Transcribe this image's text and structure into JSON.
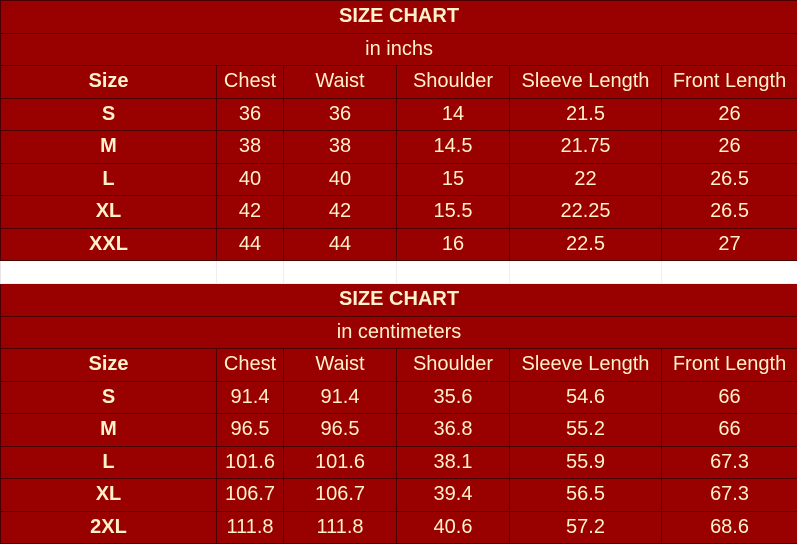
{
  "tables": [
    {
      "title": "SIZE CHART",
      "subtitle": "in inchs",
      "headers": [
        "Size",
        "Chest",
        "Waist",
        "Shoulder",
        "Sleeve Length",
        "Front Length"
      ],
      "rows": [
        [
          "S",
          "36",
          "36",
          "14",
          "21.5",
          "26"
        ],
        [
          "M",
          "38",
          "38",
          "14.5",
          "21.75",
          "26"
        ],
        [
          "L",
          "40",
          "40",
          "15",
          "22",
          "26.5"
        ],
        [
          "XL",
          "42",
          "42",
          "15.5",
          "22.25",
          "26.5"
        ],
        [
          "XXL",
          "44",
          "44",
          "16",
          "22.5",
          "27"
        ]
      ]
    },
    {
      "title": "SIZE CHART",
      "subtitle": "in centimeters",
      "headers": [
        "Size",
        "Chest",
        "Waist",
        "Shoulder",
        "Sleeve Length",
        "Front Length"
      ],
      "rows": [
        [
          "S",
          "91.4",
          "91.4",
          "35.6",
          "54.6",
          "66"
        ],
        [
          "M",
          "96.5",
          "96.5",
          "36.8",
          "55.2",
          "66"
        ],
        [
          "L",
          "101.6",
          "101.6",
          "38.1",
          "55.9",
          "67.3"
        ],
        [
          "XL",
          "106.7",
          "106.7",
          "39.4",
          "56.5",
          "67.3"
        ],
        [
          "2XL",
          "111.8",
          "111.8",
          "40.6",
          "57.2",
          "68.6"
        ]
      ]
    }
  ],
  "colors": {
    "background": "#990000",
    "text": "#fff2cc",
    "border": "#4a0000"
  }
}
